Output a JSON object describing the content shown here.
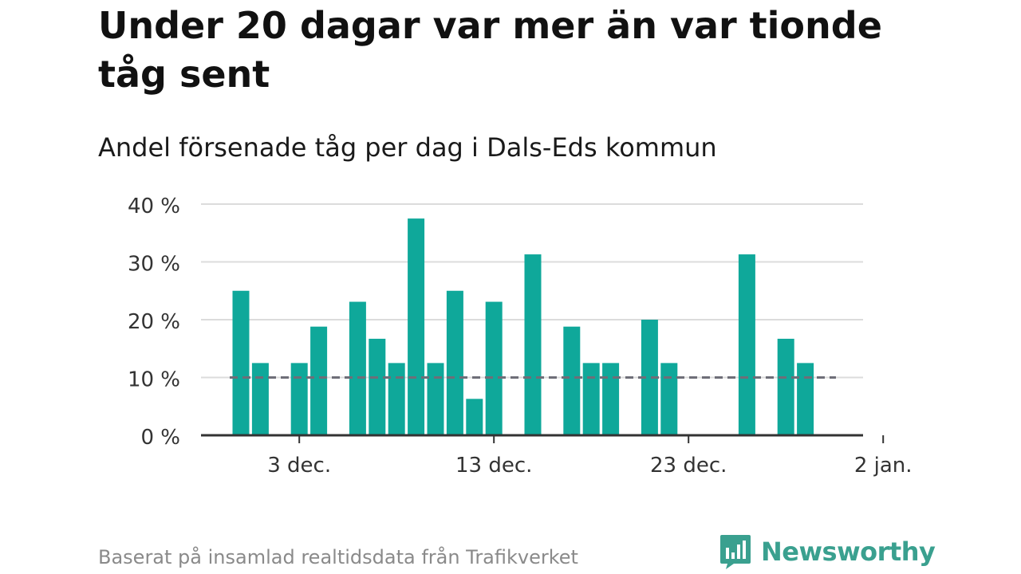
{
  "header": {
    "title": "Under 20 dagar var mer än var tionde tåg sent",
    "subtitle": "Andel försenade tåg per dag i Dals-Eds kommun"
  },
  "footer": {
    "source": "Baserat på insamlad realtidsdata från Trafikverket"
  },
  "brand": {
    "name": "Newsworthy",
    "logo_icon": "bar-chart-badge-icon",
    "color": "#3aa08f"
  },
  "colors": {
    "bar": "#0fa89a",
    "reference_line": "#6e6e78",
    "grid": "#dcdcdc",
    "axis": "#333333"
  },
  "chart_data": {
    "type": "bar",
    "title": "Under 20 dagar var mer än var tionde tåg sent",
    "subtitle": "Andel försenade tåg per dag i Dals-Eds kommun",
    "xlabel": "",
    "ylabel": "",
    "x": [
      "2023-11-30",
      "2023-12-01",
      "2023-12-02",
      "2023-12-03",
      "2023-12-04",
      "2023-12-05",
      "2023-12-06",
      "2023-12-07",
      "2023-12-08",
      "2023-12-09",
      "2023-12-10",
      "2023-12-11",
      "2023-12-12",
      "2023-12-13",
      "2023-12-14",
      "2023-12-15",
      "2023-12-16",
      "2023-12-17",
      "2023-12-18",
      "2023-12-19",
      "2023-12-20",
      "2023-12-21",
      "2023-12-22",
      "2023-12-23",
      "2023-12-24",
      "2023-12-25",
      "2023-12-26",
      "2023-12-27",
      "2023-12-28",
      "2023-12-29",
      "2023-12-30",
      "2023-12-31",
      "2024-01-01"
    ],
    "values": [
      25,
      12.5,
      null,
      12.5,
      18.8,
      null,
      23.1,
      16.7,
      12.5,
      37.5,
      12.5,
      25,
      6.3,
      23.1,
      null,
      31.3,
      null,
      18.8,
      12.5,
      12.5,
      null,
      20,
      12.5,
      null,
      null,
      null,
      31.3,
      null,
      16.7,
      12.5,
      null,
      null,
      null
    ],
    "ylim": [
      0,
      40
    ],
    "yticks": [
      0,
      10,
      20,
      30,
      40
    ],
    "ytick_labels": [
      "0 %",
      "10 %",
      "20 %",
      "30 %",
      "40 %"
    ],
    "xticks": [
      "2023-12-03",
      "2023-12-13",
      "2023-12-23",
      "2024-01-02"
    ],
    "xtick_labels": [
      "3 dec.",
      "13 dec.",
      "23 dec.",
      "2 jan."
    ],
    "reference_line": {
      "value": 10,
      "style": "dashed"
    },
    "grid": true,
    "legend": "none"
  }
}
